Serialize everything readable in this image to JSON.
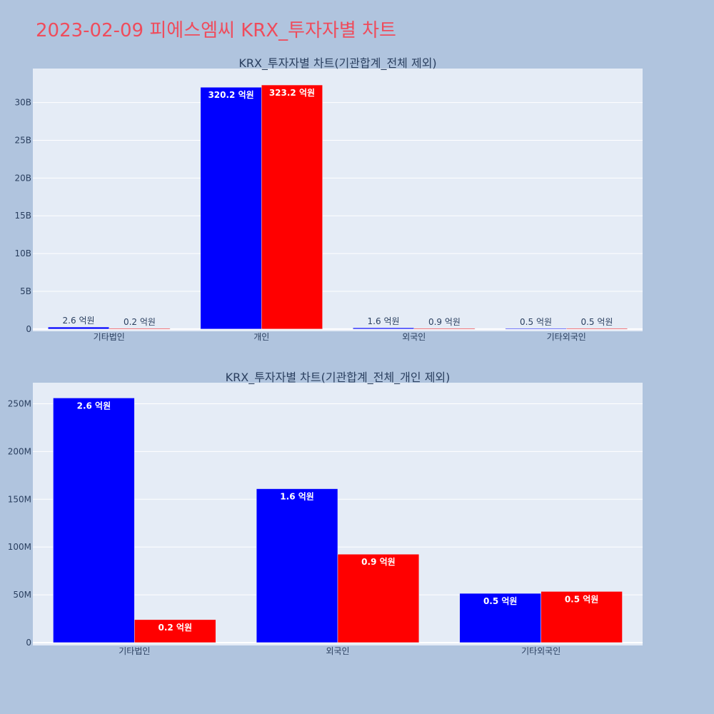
{
  "title": "2023-02-09 피에스엠씨 KRX_투자자별 차트",
  "colors": {
    "buy": "#0000ff",
    "sell": "#ff0000",
    "plot_bg": "#e5ecf6",
    "page_bg": "#b0c4de",
    "title": "#ef4c5c"
  },
  "chart_data": [
    {
      "type": "bar",
      "title": "KRX_투자자별 차트(기관합계_전체 제외)",
      "categories": [
        "기타법인",
        "개인",
        "외국인",
        "기타외국인"
      ],
      "ylim": [
        -300000000,
        34500000000
      ],
      "yticks": [
        0,
        5000000000,
        10000000000,
        15000000000,
        20000000000,
        25000000000,
        30000000000
      ],
      "ytick_labels": [
        "0",
        "5B",
        "10B",
        "15B",
        "20B",
        "25B",
        "30B"
      ],
      "grid": true,
      "series": [
        {
          "color": "#0000ff",
          "values": [
            260000000,
            32020000000,
            160000000,
            50000000
          ],
          "labels": [
            "2.6 억원",
            "320.2 억원",
            "1.6 억원",
            "0.5 억원"
          ]
        },
        {
          "color": "#ff0000",
          "values": [
            20000000,
            32320000000,
            90000000,
            50000000
          ],
          "labels": [
            "0.2 억원",
            "323.2 억원",
            "0.9 억원",
            "0.5 억원"
          ]
        }
      ]
    },
    {
      "type": "bar",
      "title": "KRX_투자자별 차트(기관합계_전체_개인 제외)",
      "categories": [
        "기타법인",
        "외국인",
        "기타외국인"
      ],
      "ylim": [
        -3000000,
        272000000
      ],
      "yticks": [
        0,
        50000000,
        100000000,
        150000000,
        200000000,
        250000000
      ],
      "ytick_labels": [
        "0",
        "50M",
        "100M",
        "150M",
        "200M",
        "250M"
      ],
      "grid": true,
      "series": [
        {
          "color": "#0000ff",
          "values": [
            256000000,
            161000000,
            51500000
          ],
          "labels": [
            "2.6 억원",
            "1.6 억원",
            "0.5 억원"
          ]
        },
        {
          "color": "#ff0000",
          "values": [
            24000000,
            92500000,
            53500000
          ],
          "labels": [
            "0.2 억원",
            "0.9 억원",
            "0.5 억원"
          ]
        }
      ]
    }
  ]
}
